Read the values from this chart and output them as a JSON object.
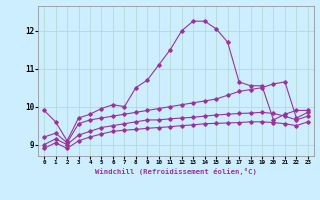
{
  "xlabel": "Windchill (Refroidissement éolien,°C)",
  "background_color": "#cceeff",
  "grid_color": "#b0d8cc",
  "line_color": "#993399",
  "x_ticks": [
    0,
    1,
    2,
    3,
    4,
    5,
    6,
    7,
    8,
    9,
    10,
    11,
    12,
    13,
    14,
    15,
    16,
    17,
    18,
    19,
    20,
    21,
    22,
    23
  ],
  "ylim": [
    8.7,
    12.65
  ],
  "xlim": [
    -0.5,
    23.5
  ],
  "y_ticks": [
    9,
    10,
    11,
    12
  ],
  "line1": [
    9.9,
    9.6,
    9.1,
    9.7,
    9.8,
    9.95,
    10.05,
    10.0,
    10.5,
    10.7,
    11.1,
    11.5,
    12.0,
    12.25,
    12.25,
    12.05,
    11.7,
    10.65,
    10.55,
    10.55,
    9.65,
    9.8,
    9.9,
    9.9
  ],
  "line2": [
    9.2,
    9.3,
    9.05,
    9.55,
    9.65,
    9.7,
    9.75,
    9.8,
    9.85,
    9.9,
    9.95,
    10.0,
    10.05,
    10.1,
    10.15,
    10.2,
    10.3,
    10.4,
    10.45,
    10.5,
    10.6,
    10.65,
    9.7,
    9.85
  ],
  "line3": [
    9.0,
    9.15,
    9.0,
    9.25,
    9.35,
    9.45,
    9.5,
    9.55,
    9.6,
    9.65,
    9.65,
    9.68,
    9.7,
    9.72,
    9.75,
    9.78,
    9.8,
    9.82,
    9.83,
    9.85,
    9.82,
    9.75,
    9.65,
    9.75
  ],
  "line4": [
    8.9,
    9.05,
    8.9,
    9.1,
    9.2,
    9.28,
    9.35,
    9.38,
    9.4,
    9.43,
    9.45,
    9.47,
    9.5,
    9.52,
    9.55,
    9.56,
    9.57,
    9.58,
    9.6,
    9.6,
    9.58,
    9.55,
    9.5,
    9.6
  ]
}
